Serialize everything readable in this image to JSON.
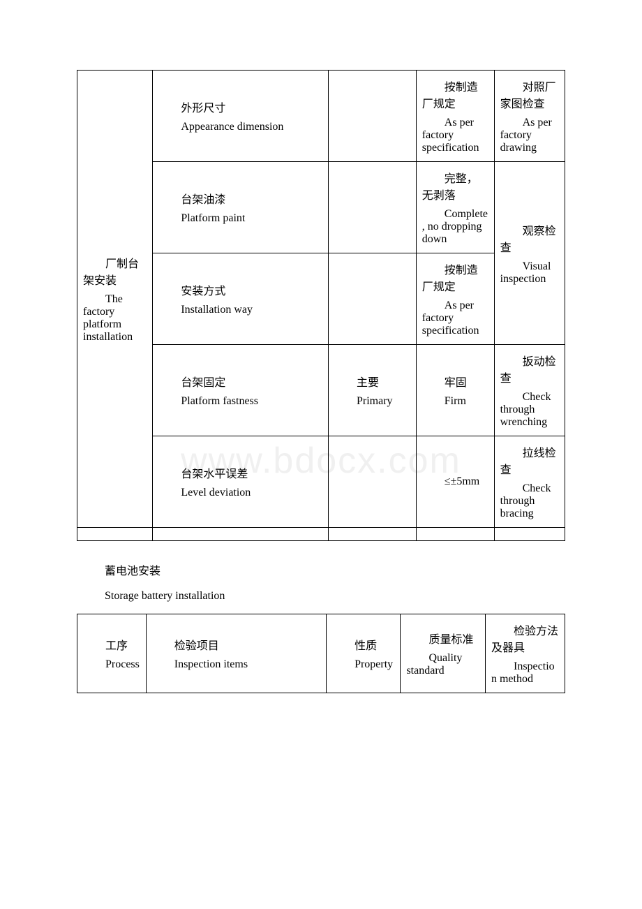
{
  "watermark": "www.bdocx.com",
  "table1": {
    "col0": {
      "cn": "厂制台架安装",
      "en": "The factory platform installation"
    },
    "rows": [
      {
        "item_cn": "外形尺寸",
        "item_en": "Appearance dimension",
        "std_cn": "按制造厂规定",
        "std_en": "As per factory specification",
        "method_cn": "对照厂家图检查",
        "method_en": "As per factory drawing"
      },
      {
        "item_cn": "台架油漆",
        "item_en": "Platform paint",
        "std_cn": "完整，无剥落",
        "std_en": "Complete, no dropping down"
      },
      {
        "item_cn": "安装方式",
        "item_en": "Installation way",
        "std_cn": "按制造厂规定",
        "std_en": "As per factory specification"
      },
      {
        "item_cn": "台架固定",
        "item_en": "Platform fastness",
        "prop_cn": "主要",
        "prop_en": "Primary",
        "std_cn": "牢固",
        "std_en": "Firm",
        "method_cn": "扳动检查",
        "method_en": "Check through wrenching"
      },
      {
        "item_cn": "台架水平误差",
        "item_en": "Level deviation",
        "std": "≤±5mm",
        "method_cn": "拉线检查",
        "method_en": "Check through bracing"
      }
    ],
    "merged_method": {
      "cn": "观察检查",
      "en": "Visual inspection"
    }
  },
  "section": {
    "cn": "蓄电池安装",
    "en": "Storage battery installation"
  },
  "table2": {
    "headers": {
      "process_cn": "工序",
      "process_en": "Process",
      "items_cn": "检验项目",
      "items_en": "Inspection items",
      "prop_cn": "性质",
      "prop_en": "Property",
      "std_cn": "质量标准",
      "std_en": "Quality standard",
      "method_cn": "检验方法及器具",
      "method_en": "Inspection method"
    }
  }
}
